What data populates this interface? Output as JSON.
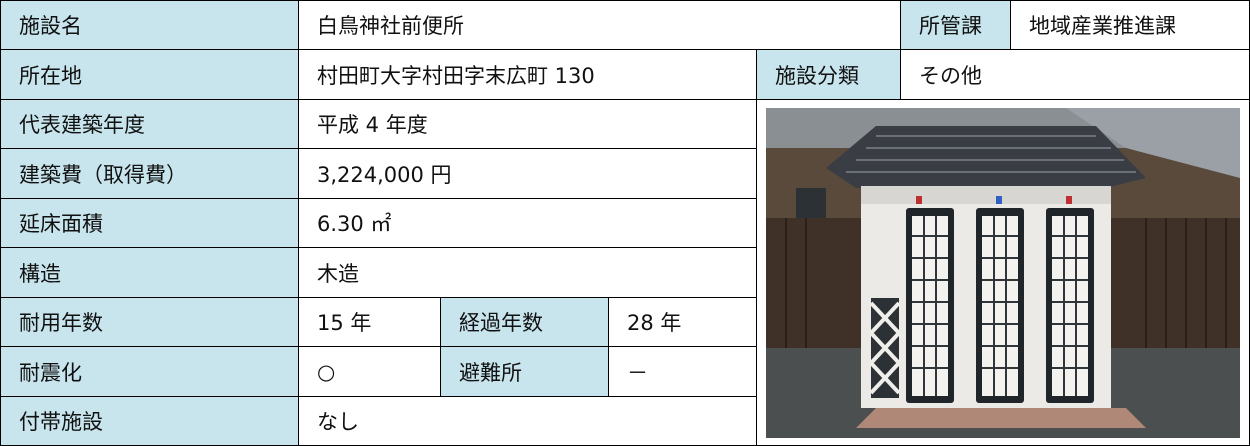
{
  "table": {
    "facility_name": {
      "label": "施設名",
      "value": "白鳥神社前便所"
    },
    "department": {
      "label": "所管課",
      "value": "地域産業推進課"
    },
    "location": {
      "label": "所在地",
      "value": "村田町大字村田字末広町 130"
    },
    "category": {
      "label": "施設分類",
      "value": "その他"
    },
    "built_year": {
      "label": "代表建築年度",
      "value": "平成 4 年度"
    },
    "cost": {
      "label": "建築費（取得費）",
      "value": "3,224,000 円"
    },
    "floor_area": {
      "label": "延床面積",
      "value": "6.30 ㎡"
    },
    "structure": {
      "label": "構造",
      "value": "木造"
    },
    "service_life": {
      "label": "耐用年数",
      "value": "15 年"
    },
    "elapsed_years": {
      "label": "経過年数",
      "value": "28 年"
    },
    "seismic": {
      "label": "耐震化",
      "value": "○"
    },
    "shelter": {
      "label": "避難所",
      "value": "－"
    },
    "ancillary": {
      "label": "付帯施設",
      "value": "なし"
    }
  }
}
